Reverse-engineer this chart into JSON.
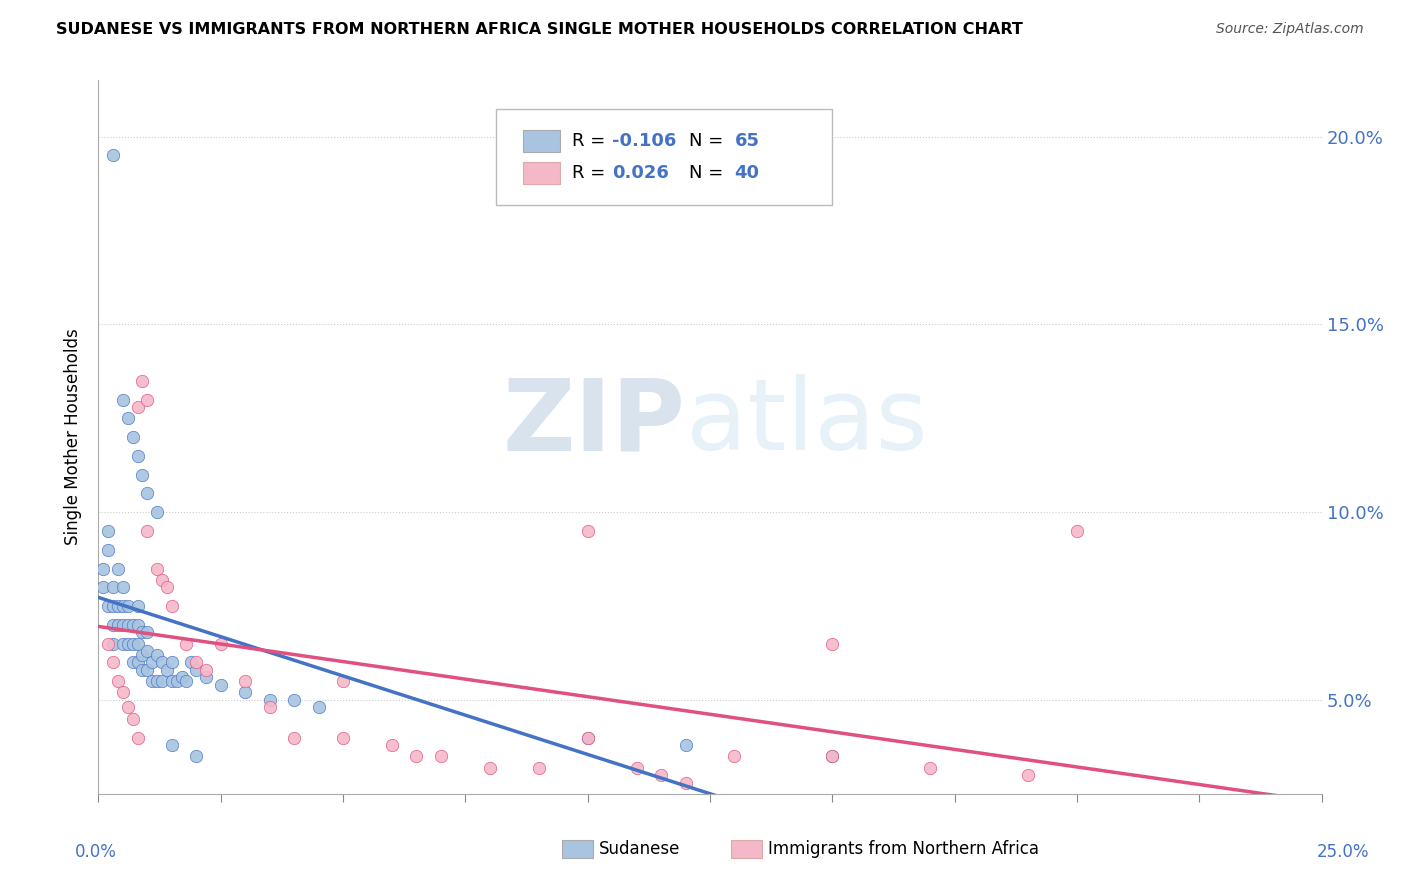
{
  "title": "SUDANESE VS IMMIGRANTS FROM NORTHERN AFRICA SINGLE MOTHER HOUSEHOLDS CORRELATION CHART",
  "source": "Source: ZipAtlas.com",
  "ylabel": "Single Mother Households",
  "ytick_values": [
    0.05,
    0.1,
    0.15,
    0.2
  ],
  "ytick_labels": [
    "5.0%",
    "10.0%",
    "15.0%",
    "20.0%"
  ],
  "xlim": [
    0.0,
    0.25
  ],
  "ylim": [
    0.025,
    0.215
  ],
  "legend_blue_r": "-0.106",
  "legend_blue_n": "65",
  "legend_pink_r": "0.026",
  "legend_pink_n": "40",
  "blue_color": "#a8c4e0",
  "pink_color": "#f4b8c8",
  "line_blue": "#4472c4",
  "line_pink": "#e05080",
  "watermark_color": "#d8e8f4",
  "blue_x": [
    0.001,
    0.001,
    0.002,
    0.002,
    0.002,
    0.003,
    0.003,
    0.003,
    0.003,
    0.004,
    0.004,
    0.004,
    0.005,
    0.005,
    0.005,
    0.005,
    0.006,
    0.006,
    0.006,
    0.007,
    0.007,
    0.007,
    0.008,
    0.008,
    0.008,
    0.008,
    0.009,
    0.009,
    0.009,
    0.01,
    0.01,
    0.01,
    0.011,
    0.011,
    0.012,
    0.012,
    0.013,
    0.013,
    0.014,
    0.015,
    0.015,
    0.016,
    0.017,
    0.018,
    0.019,
    0.02,
    0.022,
    0.025,
    0.03,
    0.035,
    0.04,
    0.045,
    0.003,
    0.005,
    0.006,
    0.007,
    0.008,
    0.009,
    0.01,
    0.012,
    0.015,
    0.02,
    0.1,
    0.12,
    0.15
  ],
  "blue_y": [
    0.08,
    0.085,
    0.075,
    0.09,
    0.095,
    0.065,
    0.07,
    0.075,
    0.08,
    0.07,
    0.075,
    0.085,
    0.065,
    0.07,
    0.075,
    0.08,
    0.065,
    0.07,
    0.075,
    0.06,
    0.065,
    0.07,
    0.06,
    0.065,
    0.07,
    0.075,
    0.058,
    0.062,
    0.068,
    0.058,
    0.063,
    0.068,
    0.055,
    0.06,
    0.055,
    0.062,
    0.055,
    0.06,
    0.058,
    0.055,
    0.06,
    0.055,
    0.056,
    0.055,
    0.06,
    0.058,
    0.056,
    0.054,
    0.052,
    0.05,
    0.05,
    0.048,
    0.195,
    0.13,
    0.125,
    0.12,
    0.115,
    0.11,
    0.105,
    0.1,
    0.038,
    0.035,
    0.04,
    0.038,
    0.035
  ],
  "pink_x": [
    0.002,
    0.003,
    0.004,
    0.005,
    0.006,
    0.007,
    0.008,
    0.008,
    0.009,
    0.01,
    0.01,
    0.012,
    0.013,
    0.014,
    0.015,
    0.018,
    0.02,
    0.022,
    0.025,
    0.03,
    0.035,
    0.04,
    0.05,
    0.05,
    0.06,
    0.065,
    0.07,
    0.08,
    0.09,
    0.1,
    0.11,
    0.115,
    0.12,
    0.13,
    0.15,
    0.17,
    0.19,
    0.2,
    0.1,
    0.15
  ],
  "pink_y": [
    0.065,
    0.06,
    0.055,
    0.052,
    0.048,
    0.045,
    0.04,
    0.128,
    0.135,
    0.13,
    0.095,
    0.085,
    0.082,
    0.08,
    0.075,
    0.065,
    0.06,
    0.058,
    0.065,
    0.055,
    0.048,
    0.04,
    0.04,
    0.055,
    0.038,
    0.035,
    0.035,
    0.032,
    0.032,
    0.04,
    0.032,
    0.03,
    0.028,
    0.035,
    0.035,
    0.032,
    0.03,
    0.095,
    0.095,
    0.065
  ]
}
